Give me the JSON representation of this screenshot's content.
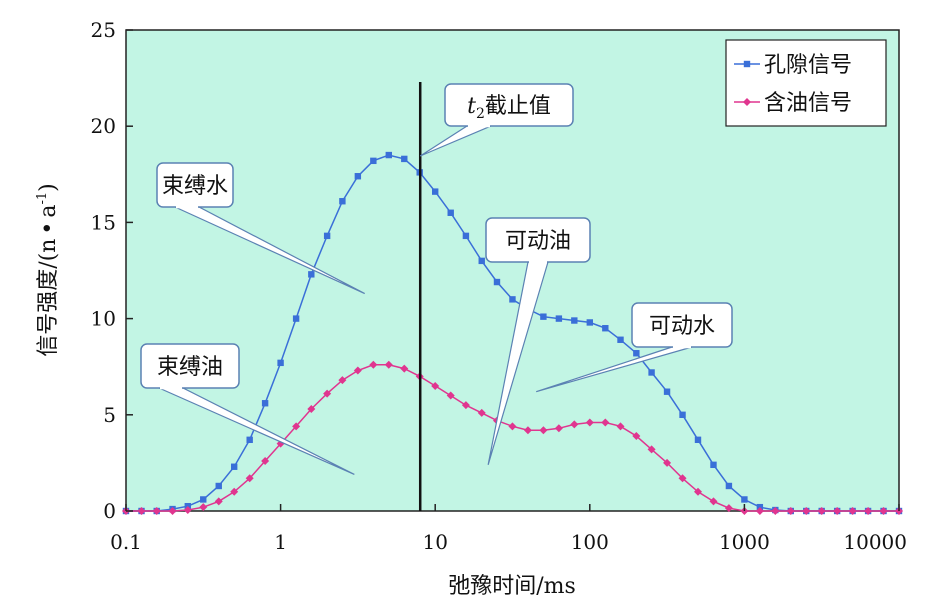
{
  "chart_data": {
    "type": "line",
    "xlabel": "弛豫时间/ms",
    "ylabel": "信号强度/(n·a⁻¹)",
    "ylabel_parts": {
      "main": "信号强度/(n",
      "dot": "•",
      "a": "a",
      "sup": "-1",
      "close": ")"
    },
    "xscale": "log",
    "xlim": [
      0.1,
      10000
    ],
    "ylim": [
      0,
      25
    ],
    "x_ticks": [
      0.1,
      1,
      10,
      100,
      1000,
      10000
    ],
    "x_tick_labels": [
      "0.1",
      "1",
      "10",
      "100",
      "1000",
      "10000"
    ],
    "y_ticks": [
      0,
      5,
      10,
      15,
      20,
      25
    ],
    "y_tick_labels": [
      "0",
      "5",
      "10",
      "15",
      "20",
      "25"
    ],
    "legend_position": "top-right",
    "plot_background": "#c2f5e4",
    "series": [
      {
        "name": "孔隙信号",
        "color": "#3a6fd8",
        "marker": "square",
        "x": [
          0.1,
          0.126,
          0.158,
          0.2,
          0.251,
          0.316,
          0.398,
          0.501,
          0.631,
          0.794,
          1.0,
          1.26,
          1.58,
          2.0,
          2.51,
          3.16,
          3.98,
          5.01,
          6.31,
          7.94,
          10.0,
          12.6,
          15.8,
          20.0,
          25.1,
          31.6,
          39.8,
          50.1,
          63.1,
          79.4,
          100,
          126,
          158,
          200,
          251,
          316,
          398,
          501,
          631,
          794,
          1000,
          1259,
          1585,
          1995,
          2512,
          3162,
          3981,
          5012,
          6310,
          7943,
          10000
        ],
        "y": [
          0,
          0,
          0,
          0.1,
          0.25,
          0.6,
          1.3,
          2.3,
          3.7,
          5.6,
          7.7,
          10.0,
          12.3,
          14.3,
          16.1,
          17.4,
          18.2,
          18.5,
          18.3,
          17.6,
          16.6,
          15.5,
          14.3,
          13.0,
          11.9,
          11.0,
          10.5,
          10.1,
          10.0,
          9.9,
          9.8,
          9.5,
          8.9,
          8.2,
          7.2,
          6.2,
          5.0,
          3.7,
          2.4,
          1.3,
          0.6,
          0.2,
          0.05,
          0,
          0,
          0,
          0,
          0,
          0,
          0,
          0
        ]
      },
      {
        "name": "含油信号",
        "color": "#e0358f",
        "marker": "diamond",
        "x": [
          0.1,
          0.126,
          0.158,
          0.2,
          0.251,
          0.316,
          0.398,
          0.501,
          0.631,
          0.794,
          1.0,
          1.26,
          1.58,
          2.0,
          2.51,
          3.16,
          3.98,
          5.01,
          6.31,
          7.94,
          10.0,
          12.6,
          15.8,
          20.0,
          25.1,
          31.6,
          39.8,
          50.1,
          63.1,
          79.4,
          100,
          126,
          158,
          200,
          251,
          316,
          398,
          501,
          631,
          794,
          1000,
          1259,
          1585,
          1995,
          2512,
          3162,
          3981,
          5012,
          6310,
          7943,
          10000
        ],
        "y": [
          0,
          0,
          0,
          0,
          0.05,
          0.2,
          0.5,
          1.0,
          1.7,
          2.6,
          3.5,
          4.4,
          5.3,
          6.1,
          6.8,
          7.3,
          7.6,
          7.6,
          7.4,
          7.0,
          6.5,
          6.0,
          5.5,
          5.1,
          4.7,
          4.4,
          4.2,
          4.2,
          4.3,
          4.5,
          4.6,
          4.6,
          4.4,
          3.9,
          3.2,
          2.5,
          1.7,
          1.0,
          0.5,
          0.15,
          0,
          0,
          0,
          0,
          0,
          0,
          0,
          0,
          0,
          0,
          0
        ]
      }
    ],
    "cutoff": {
      "x": 8.0,
      "label_t": "t",
      "label_sub": "2",
      "label_rest": "截止值"
    },
    "annotations": [
      {
        "text": "束缚水",
        "target_x": 3.5,
        "target_y": 11.3
      },
      {
        "text": "可动油",
        "target_x": 22,
        "target_y": 2.4
      },
      {
        "text": "可动水",
        "target_x": 45,
        "target_y": 6.2
      },
      {
        "text": "束缚油",
        "target_x": 3.0,
        "target_y": 1.9
      }
    ]
  }
}
